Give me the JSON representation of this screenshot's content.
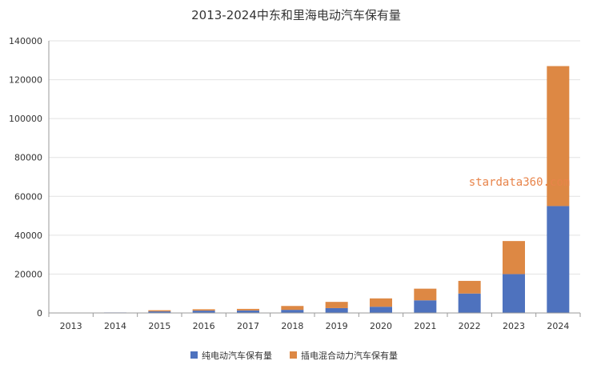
{
  "chart_data": {
    "type": "bar",
    "stacked": true,
    "title": "2013-2024中东和里海电动汽车保有量",
    "categories": [
      "2013",
      "2014",
      "2015",
      "2016",
      "2017",
      "2018",
      "2019",
      "2020",
      "2021",
      "2022",
      "2023",
      "2024"
    ],
    "series": [
      {
        "name": "纯电动汽车保有量",
        "color": "#4e72be",
        "values": [
          150,
          250,
          800,
          1200,
          1300,
          1600,
          2500,
          3200,
          6500,
          10000,
          20000,
          55000
        ]
      },
      {
        "name": "插电混合动力汽车保有量",
        "color": "#dd8844",
        "values": [
          0,
          0,
          600,
          700,
          800,
          2000,
          3200,
          4300,
          6000,
          6500,
          17000,
          72000
        ]
      }
    ],
    "yticks": [
      0,
      20000,
      40000,
      60000,
      80000,
      100000,
      120000,
      140000
    ],
    "ylim": [
      0,
      140000
    ],
    "grid": true,
    "legend_position": "bottom",
    "watermark": "stardata360.com"
  }
}
